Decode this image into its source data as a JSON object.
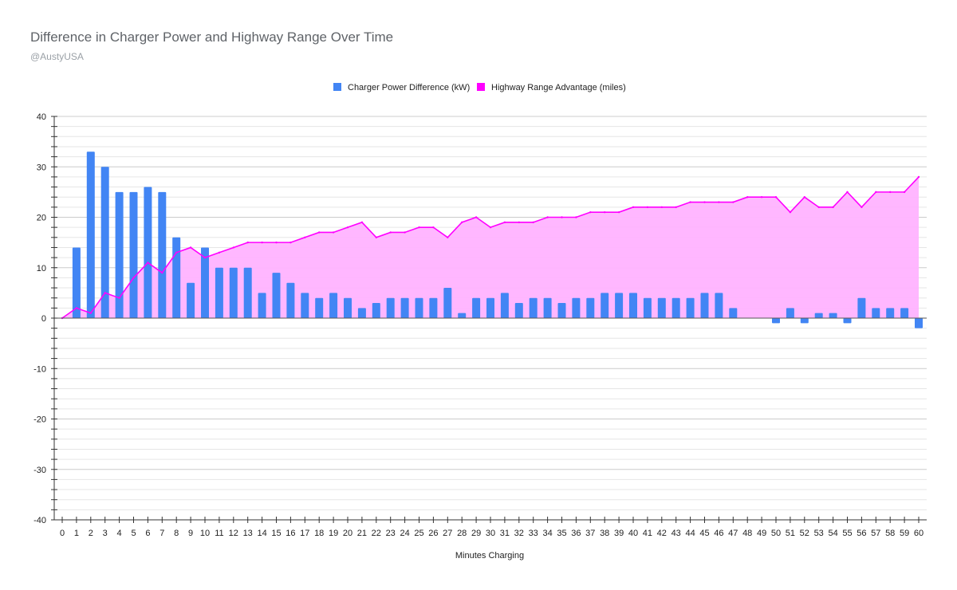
{
  "chart_data": {
    "type": "bar+area",
    "title": "Difference in Charger Power and Highway Range Over Time",
    "subtitle": "@AustyUSA",
    "xlabel": "Minutes Charging",
    "ylabel": "",
    "ylim": [
      -40,
      40
    ],
    "yticks": [
      40,
      30,
      20,
      10,
      0,
      -10,
      -20,
      -30,
      -40
    ],
    "legend_position": "top-center",
    "grid": true,
    "x": [
      0,
      1,
      2,
      3,
      4,
      5,
      6,
      7,
      8,
      9,
      10,
      11,
      12,
      13,
      14,
      15,
      16,
      17,
      18,
      19,
      20,
      21,
      22,
      23,
      24,
      25,
      26,
      27,
      28,
      29,
      30,
      31,
      32,
      33,
      34,
      35,
      36,
      37,
      38,
      39,
      40,
      41,
      42,
      43,
      44,
      45,
      46,
      47,
      48,
      49,
      50,
      51,
      52,
      53,
      54,
      55,
      56,
      57,
      58,
      59,
      60
    ],
    "series": [
      {
        "name": "Charger Power Difference (kW)",
        "type": "bar",
        "color": "#4285f4",
        "values": [
          0,
          14,
          33,
          30,
          25,
          25,
          26,
          25,
          16,
          7,
          14,
          10,
          10,
          10,
          5,
          9,
          7,
          5,
          4,
          5,
          4,
          2,
          3,
          4,
          4,
          4,
          4,
          6,
          1,
          4,
          4,
          5,
          3,
          4,
          4,
          3,
          4,
          4,
          5,
          5,
          5,
          4,
          4,
          4,
          4,
          5,
          5,
          2,
          0,
          0,
          -1,
          2,
          -1,
          1,
          1,
          -1,
          4,
          2,
          2,
          2,
          -2
        ]
      },
      {
        "name": "Highway Range Advantage (miles)",
        "type": "area",
        "color": "#ff00ff",
        "fill": "#ffb3ff",
        "values": [
          0,
          2,
          1,
          5,
          4,
          8,
          11,
          9,
          13,
          14,
          12,
          13,
          14,
          15,
          15,
          15,
          15,
          16,
          17,
          17,
          18,
          19,
          16,
          17,
          17,
          18,
          18,
          16,
          19,
          20,
          18,
          19,
          19,
          19,
          20,
          20,
          20,
          21,
          21,
          21,
          22,
          22,
          22,
          22,
          23,
          23,
          23,
          23,
          24,
          24,
          24,
          21,
          24,
          22,
          22,
          25,
          22,
          25,
          25,
          25,
          28
        ]
      }
    ]
  }
}
